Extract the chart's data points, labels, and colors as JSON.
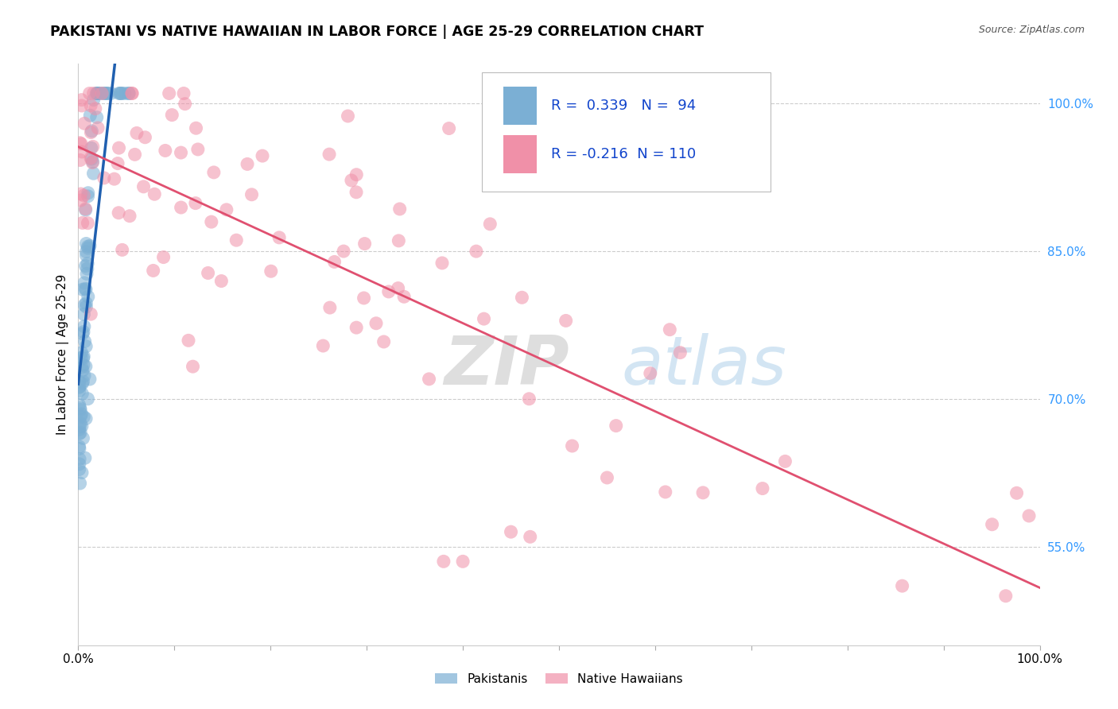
{
  "title": "PAKISTANI VS NATIVE HAWAIIAN IN LABOR FORCE | AGE 25-29 CORRELATION CHART",
  "source": "Source: ZipAtlas.com",
  "ylabel": "In Labor Force | Age 25-29",
  "xlim": [
    0,
    1.0
  ],
  "ylim": [
    0.45,
    1.04
  ],
  "x_tick_labels": [
    "0.0%",
    "",
    "",
    "",
    "",
    "",
    "",
    "",
    "",
    "",
    "100.0%"
  ],
  "y_tick_labels_right": [
    "55.0%",
    "70.0%",
    "85.0%",
    "100.0%"
  ],
  "y_ticks_right": [
    0.55,
    0.7,
    0.85,
    1.0
  ],
  "legend_blue_label": "Pakistanis",
  "legend_pink_label": "Native Hawaiians",
  "R_blue": 0.339,
  "N_blue": 94,
  "R_pink": -0.216,
  "N_pink": 110,
  "blue_marker_color": "#7bafd4",
  "pink_marker_color": "#f090a8",
  "trend_blue_color": "#2060b0",
  "trend_pink_color": "#e05070",
  "watermark_zip": "ZIP",
  "watermark_atlas": "atlas",
  "grid_color": "#cccccc",
  "legend_box_color": "#dddddd"
}
